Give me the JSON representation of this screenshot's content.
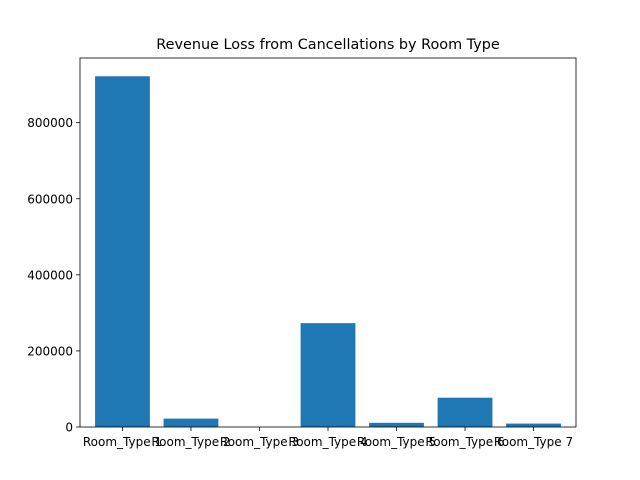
{
  "chart_data": {
    "type": "bar",
    "title": "Revenue Loss from Cancellations by Room Type",
    "xlabel": "",
    "ylabel": "",
    "categories": [
      "Room_Type 1",
      "Room_Type 2",
      "Room_Type 3",
      "Room_Type 4",
      "Room_Type 5",
      "Room_Type 6",
      "Room_Type 7"
    ],
    "values": [
      922000,
      22000,
      0,
      273000,
      11000,
      77000,
      9000
    ],
    "ylim": [
      0,
      970000
    ],
    "yticks": [
      0,
      200000,
      400000,
      600000,
      800000
    ],
    "ytick_labels": [
      "0",
      "200000",
      "400000",
      "600000",
      "800000"
    ],
    "bar_color": "#1f77b4",
    "grid": false,
    "legend": "none"
  }
}
